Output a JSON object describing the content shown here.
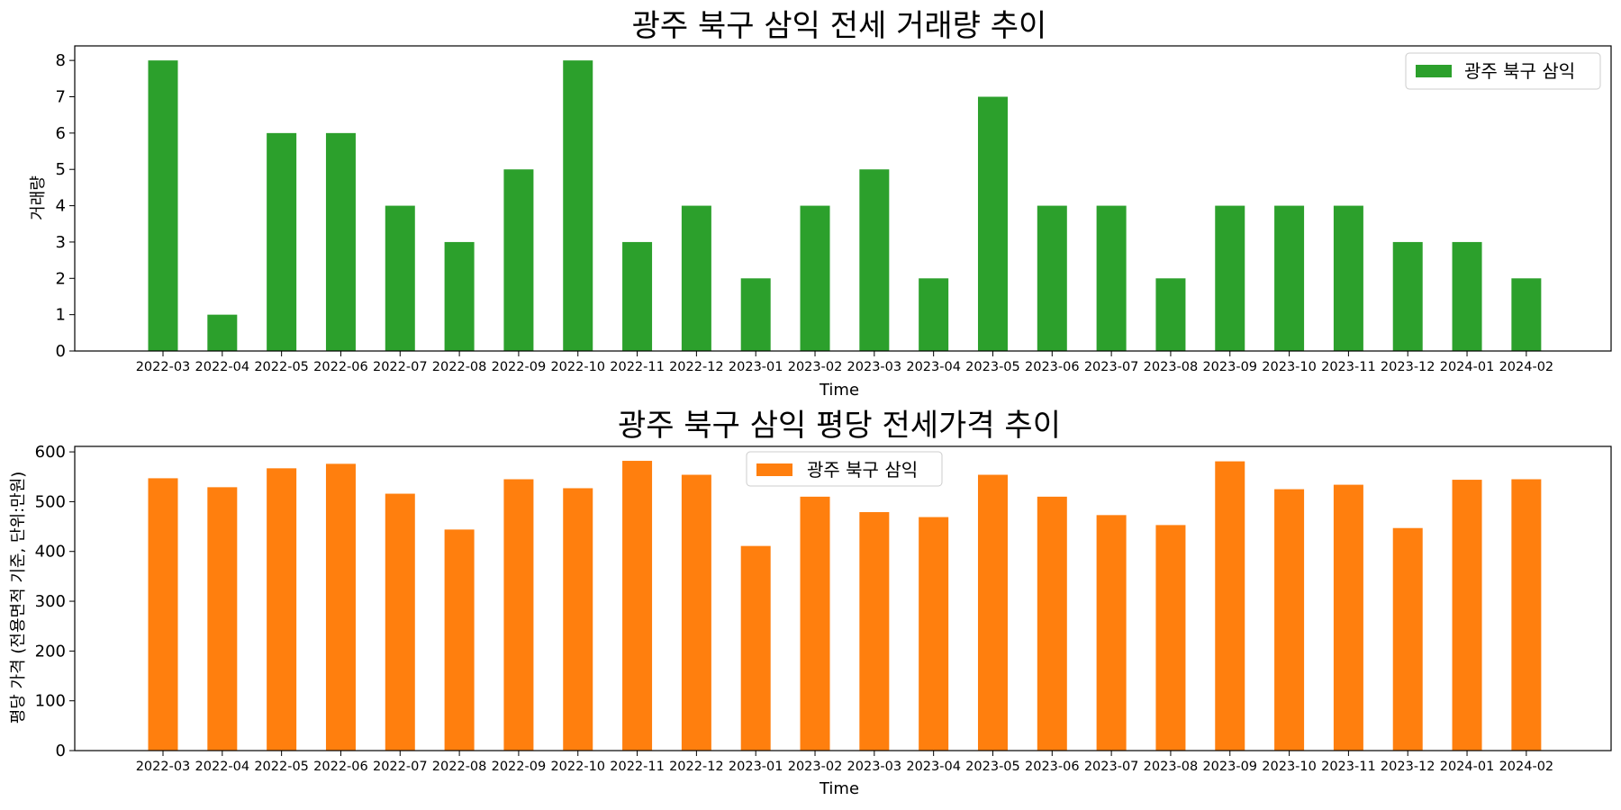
{
  "chart_data": [
    {
      "type": "bar",
      "title": "광주 북구 삼익 전세 거래량 추이",
      "xlabel": "Time",
      "ylabel": "거래량",
      "categories": [
        "2022-03",
        "2022-04",
        "2022-05",
        "2022-06",
        "2022-07",
        "2022-08",
        "2022-09",
        "2022-10",
        "2022-11",
        "2022-12",
        "2023-01",
        "2023-02",
        "2023-03",
        "2023-04",
        "2023-05",
        "2023-06",
        "2023-07",
        "2023-08",
        "2023-09",
        "2023-10",
        "2023-11",
        "2023-12",
        "2024-01",
        "2024-02"
      ],
      "series": [
        {
          "name": "광주 북구 삼익",
          "color": "#2ca02c",
          "values": [
            8,
            1,
            6,
            6,
            4,
            3,
            5,
            8,
            3,
            4,
            2,
            4,
            5,
            2,
            7,
            4,
            4,
            2,
            4,
            4,
            4,
            3,
            3,
            2
          ]
        }
      ],
      "ylim": [
        0,
        8.4
      ],
      "yticks": [
        0,
        1,
        2,
        3,
        4,
        5,
        6,
        7,
        8
      ],
      "legend_position": "upper right",
      "grid": false
    },
    {
      "type": "bar",
      "title": "광주 북구 삼익 평당 전세가격 추이",
      "xlabel": "Time",
      "ylabel": "평당 가격 (전용면적 기준, 단위:만원)",
      "categories": [
        "2022-03",
        "2022-04",
        "2022-05",
        "2022-06",
        "2022-07",
        "2022-08",
        "2022-09",
        "2022-10",
        "2022-11",
        "2022-12",
        "2023-01",
        "2023-02",
        "2023-03",
        "2023-04",
        "2023-05",
        "2023-06",
        "2023-07",
        "2023-08",
        "2023-09",
        "2023-10",
        "2023-11",
        "2023-12",
        "2024-01",
        "2024-02"
      ],
      "series": [
        {
          "name": "광주 북구 삼익",
          "color": "#ff7f0e",
          "values": [
            547,
            529,
            567,
            576,
            516,
            444,
            545,
            527,
            582,
            554,
            411,
            510,
            479,
            469,
            554,
            510,
            473,
            453,
            581,
            525,
            534,
            447,
            544,
            545
          ]
        }
      ],
      "ylim": [
        0,
        611
      ],
      "yticks": [
        0,
        100,
        200,
        300,
        400,
        500,
        600
      ],
      "legend_position": "upper center",
      "grid": false
    }
  ]
}
